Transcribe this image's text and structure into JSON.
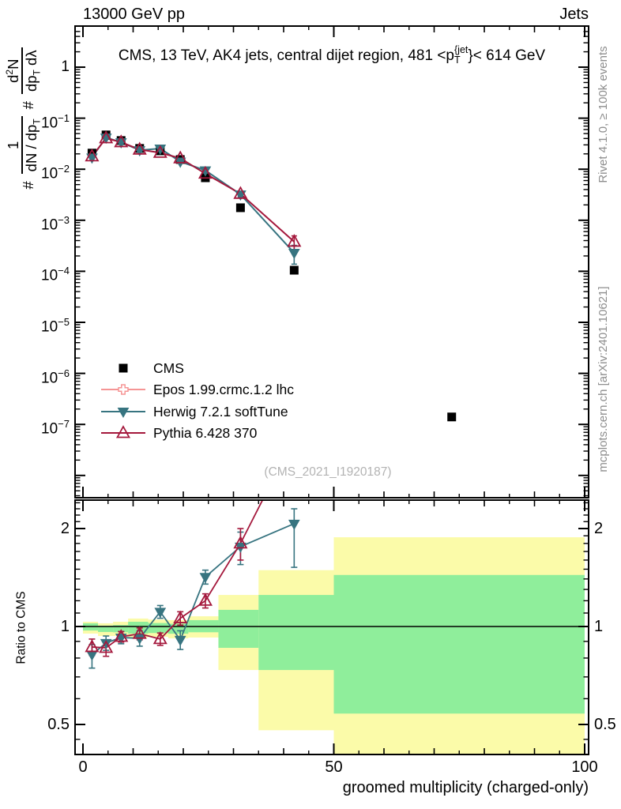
{
  "header": {
    "left": "13000 GeV pp",
    "right": "Jets"
  },
  "title": {
    "pre": "CMS, 13 TeV, AK4 jets, central dijet region, 481 <p",
    "sup": "{jet",
    "sub": "T",
    "post": "}< 614 GeV"
  },
  "watermark": "(CMS_2021_I1920187)",
  "sidenotes": {
    "top": "Rivet 4.1.0, ≥ 100k events",
    "bottom": "mcplots.cern.ch [arXiv:2401.10621]"
  },
  "ylabel": {
    "hash1": "#",
    "f1_num": "1",
    "f1_den_main": "dN / dp",
    "f1_den_sub": "T",
    "hash2": "#",
    "f2_num_a": "d",
    "f2_num_sup": "2",
    "f2_num_b": "N",
    "f2_den_a": "dp",
    "f2_den_sub": "T",
    "f2_den_b": " dλ"
  },
  "ratio_ylabel": "Ratio to CMS",
  "xlabel": "groomed multiplicity (charged-only)",
  "colors": {
    "cms": "#000000",
    "epos": "#f59595",
    "herwig": "#377480",
    "pythia": "#a4183c",
    "band_yellow": "#fbfba9",
    "band_green": "#8fee9b",
    "note_gray": "#8e8e8e",
    "watermark_gray": "#b3b3b3"
  },
  "legend": [
    {
      "label": "CMS",
      "marker": "square-filled",
      "color": "#000000",
      "line": false
    },
    {
      "label": "Epos 1.99.crmc.1.2 lhc",
      "marker": "cross-open",
      "color": "#f59595",
      "line": true
    },
    {
      "label": "Herwig 7.2.1 softTune",
      "marker": "triangle-down-filled",
      "color": "#377480",
      "line": true
    },
    {
      "label": "Pythia 6.428 370",
      "marker": "triangle-up-open",
      "color": "#a4183c",
      "line": true
    }
  ],
  "axis_labels": {
    "y_ticks": [
      {
        "v": 1,
        "base": "1",
        "exp": ""
      },
      {
        "v": 0.1,
        "base": "10",
        "exp": "−1"
      },
      {
        "v": 0.01,
        "base": "10",
        "exp": "−2"
      },
      {
        "v": 0.001,
        "base": "10",
        "exp": "−3"
      },
      {
        "v": 0.0001,
        "base": "10",
        "exp": "−4"
      },
      {
        "v": 1e-05,
        "base": "10",
        "exp": "−5"
      },
      {
        "v": 1e-06,
        "base": "10",
        "exp": "−6"
      },
      {
        "v": 1e-07,
        "base": "10",
        "exp": "−7"
      }
    ],
    "ratio_ticks": [
      {
        "v": 2,
        "t": "2"
      },
      {
        "v": 1,
        "t": "1"
      },
      {
        "v": 0.5,
        "t": "0.5"
      }
    ],
    "x_ticks": [
      {
        "v": 0,
        "t": "0"
      },
      {
        "v": 50,
        "t": "50"
      },
      {
        "v": 100,
        "t": "100"
      }
    ]
  },
  "chart_data": [
    {
      "type": "line",
      "panel": "main",
      "title": "CMS, 13 TeV, AK4 jets, central dijet region, 481 < pT{jet} < 614 GeV",
      "xlabel": "groomed multiplicity (charged-only)",
      "ylabel": "# 1/(dN/dpT) # d2N/(dpT dlambda)",
      "xscale": "linear",
      "yscale": "log",
      "xlim": [
        -1.6,
        100.8
      ],
      "ylim": [
        3.6e-09,
        6.3
      ],
      "grid": false,
      "x": [
        1.8,
        4.6,
        7.6,
        11.3,
        15.4,
        19.4,
        24.4,
        31.4,
        42.1
      ],
      "series": [
        {
          "name": "CMS",
          "marker": "square-filled",
          "color": "#000000",
          "line": false,
          "y": [
            0.0207,
            0.047,
            0.0365,
            0.0256,
            0.0229,
            0.0155,
            0.0068,
            0.00176,
            0.000105
          ],
          "extra_points": [
            {
              "x": 73.5,
              "y": 1.4e-07
            }
          ]
        },
        {
          "name": "Epos 1.99.crmc.1.2 lhc",
          "marker": "cross-open",
          "color": "#f59595",
          "line": true,
          "y": [],
          "note": "in legend only, no visible curve"
        },
        {
          "name": "Herwig 7.2.1 softTune",
          "marker": "triangle-down-filled",
          "color": "#377480",
          "line": true,
          "y": [
            0.017,
            0.0418,
            0.0338,
            0.0236,
            0.0254,
            0.0141,
            0.0095,
            0.0032,
            0.00023
          ],
          "yerr_rel": [
            0.05,
            0.03,
            0.03,
            0.04,
            0.04,
            0.05,
            0.05,
            0.1,
            0.4
          ]
        },
        {
          "name": "Pythia 6.428 370",
          "marker": "triangle-up-open",
          "color": "#a4183c",
          "line": true,
          "y": [
            0.0179,
            0.0404,
            0.0339,
            0.0243,
            0.021,
            0.0164,
            0.0082,
            0.0033,
            0.00038
          ],
          "yerr_rel": [
            0.05,
            0.04,
            0.03,
            0.035,
            0.04,
            0.045,
            0.05,
            0.1,
            0.3
          ]
        }
      ]
    },
    {
      "type": "line",
      "panel": "ratio",
      "ylabel": "Ratio to CMS",
      "xscale": "linear",
      "yscale": "log",
      "xlim": [
        -1.6,
        100.8
      ],
      "ylim": [
        0.404,
        2.45
      ],
      "ref_line": 1,
      "x": [
        1.8,
        4.6,
        7.6,
        11.3,
        15.4,
        19.4,
        24.4,
        31.4,
        42.1
      ],
      "series": [
        {
          "name": "Herwig 7.2.1 softTune",
          "marker": "triangle-down-filled",
          "color": "#377480",
          "line": true,
          "y": [
            0.82,
            0.89,
            0.925,
            0.92,
            1.11,
            0.91,
            1.42,
            1.76,
            2.07
          ],
          "yerr": [
            [
              0.745,
              0.88
            ],
            [
              0.845,
              0.935
            ],
            [
              0.885,
              0.965
            ],
            [
              0.87,
              0.97
            ],
            [
              1.06,
              1.16
            ],
            [
              0.85,
              0.97
            ],
            [
              1.35,
              1.49
            ],
            [
              1.55,
              1.95
            ],
            [
              1.52,
              2.3
            ]
          ]
        },
        {
          "name": "Pythia 6.428 370",
          "marker": "triangle-up-open",
          "color": "#a4183c",
          "line": true,
          "y": [
            0.865,
            0.86,
            0.93,
            0.95,
            0.915,
            1.06,
            1.2,
            1.8,
            3.8
          ],
          "yerr": [
            [
              0.815,
              0.915
            ],
            [
              0.81,
              0.91
            ],
            [
              0.895,
              0.965
            ],
            [
              0.91,
              0.99
            ],
            [
              0.875,
              0.955
            ],
            [
              1.01,
              1.11
            ],
            [
              1.14,
              1.26
            ],
            [
              1.6,
              2.0
            ],
            [
              3.3,
              4.3
            ]
          ]
        }
      ],
      "bands": {
        "edges": [
          0,
          3,
          6,
          9,
          13,
          17,
          21,
          27,
          35,
          50,
          100
        ],
        "yellow": [
          [
            0.951,
            1.034
          ],
          [
            0.935,
            1.023
          ],
          [
            0.935,
            1.034
          ],
          [
            0.925,
            1.058
          ],
          [
            0.93,
            1.05
          ],
          [
            0.92,
            1.046
          ],
          [
            0.925,
            1.075
          ],
          [
            0.735,
            1.25
          ],
          [
            0.48,
            1.49
          ],
          [
            0.4,
            1.88
          ]
        ],
        "green": [
          [
            0.972,
            1.023
          ],
          [
            0.962,
            1.006
          ],
          [
            0.96,
            1.01
          ],
          [
            0.951,
            1.034
          ],
          [
            0.955,
            1.025
          ],
          [
            0.95,
            1.02
          ],
          [
            0.96,
            1.046
          ],
          [
            0.86,
            1.125
          ],
          [
            0.735,
            1.25
          ],
          [
            0.54,
            1.44
          ]
        ]
      }
    }
  ]
}
